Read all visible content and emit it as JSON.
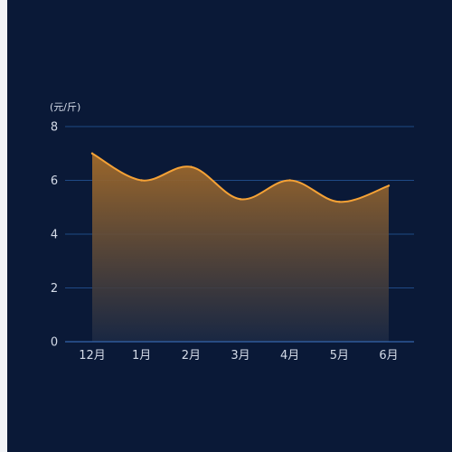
{
  "colors": {
    "panel_bg": "#0a1937",
    "page_bg": "#f1f3f6",
    "line": "#f5a236",
    "area_top": "#a36b2a",
    "area_bottom": "#1c2a45",
    "grid": "#1f4a86",
    "axis": "#3d77c8",
    "text": "#d4dbe8"
  },
  "chart_data": {
    "type": "area",
    "smooth": true,
    "ylabel": "(元/斤)",
    "categories": [
      "12月",
      "1月",
      "2月",
      "3月",
      "4月",
      "5月",
      "6月"
    ],
    "values": [
      7.0,
      6.0,
      6.5,
      5.3,
      6.0,
      5.2,
      5.8
    ],
    "ylim": [
      0,
      8
    ],
    "yticks": [
      0,
      2,
      4,
      6,
      8
    ],
    "grid": true,
    "legend": "none"
  }
}
